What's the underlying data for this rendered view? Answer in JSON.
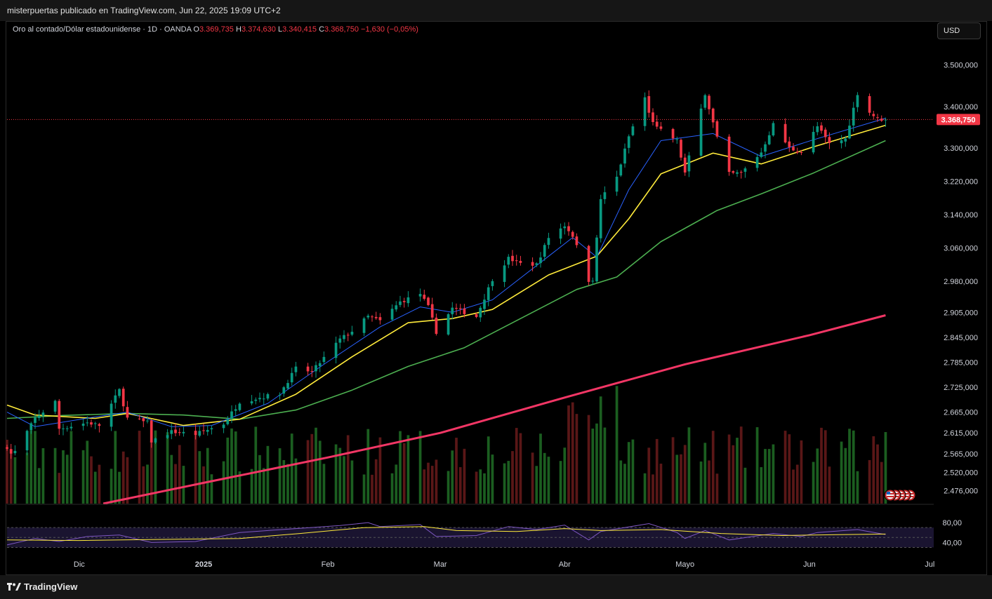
{
  "header": {
    "published_text": "misterpuertas publicado en TradingView.com, Jun 22, 2025 19:09 UTC+2"
  },
  "symbol_info": {
    "title": "Oro al contado/Dólar estadounidense · 1D · OANDA",
    "open_label": "O",
    "open_value": "3.369,735",
    "high_label": "H",
    "high_value": "3.374,630",
    "low_label": "L",
    "low_value": "3.340,415",
    "close_label": "C",
    "close_value": "3.368,750",
    "change": "−1,630 (−0,05%)"
  },
  "currency_button": "USD",
  "current_price_label": "3.368,750",
  "footer": {
    "logo_text": "TradingView"
  },
  "colors": {
    "up": "#089981",
    "down": "#f23645",
    "volume_up": "#1b5e20",
    "volume_down": "#5a1717",
    "ema_fast": "#2962ff",
    "ema_mid": "#ffeb3b",
    "ema_slow": "#4caf50",
    "ema_long": "#f23665",
    "rsi": "#7e57c2",
    "rsi_ma": "#ffeb3b"
  },
  "chart_data": {
    "type": "candlestick",
    "title": "Oro al contado/Dólar estadounidense · 1D · OANDA",
    "x_tick_labels": [
      "Dic",
      "2025",
      "Feb",
      "Mar",
      "Abr",
      "Mayo",
      "Jun",
      "Jul"
    ],
    "y_tick_labels": [
      "3.500,000",
      "3.400,000",
      "3.300,000",
      "3.220,000",
      "3.140,000",
      "3.060,000",
      "2.980,000",
      "2.905,000",
      "2.845,000",
      "2.785,000",
      "2.725,000",
      "2.665,000",
      "2.615,000",
      "2.565,000",
      "2.520,000",
      "2.476,000"
    ],
    "y_ticks": [
      3500,
      3400,
      3300,
      3220,
      3140,
      3060,
      2980,
      2905,
      2845,
      2785,
      2725,
      2665,
      2615,
      2565,
      2520,
      2476
    ],
    "ylim": [
      2445,
      3555
    ],
    "x_range": [
      "2024-11-13",
      "2025-07-02"
    ],
    "last_price": 3368.75,
    "rsi_tick_labels": [
      "80,00",
      "40,00"
    ],
    "rsi_ticks": [
      80,
      40
    ],
    "rsi_lim": [
      25,
      90
    ],
    "price_path": [
      [
        "2024-11-13",
        2582
      ],
      [
        "2024-11-14",
        2565
      ],
      [
        "2024-11-15",
        2570
      ],
      [
        "2024-11-20",
        2650
      ],
      [
        "2024-11-25",
        2690
      ],
      [
        "2024-11-26",
        2625
      ],
      [
        "2024-12-03",
        2640
      ],
      [
        "2024-12-06",
        2633
      ],
      [
        "2024-12-11",
        2718
      ],
      [
        "2024-12-13",
        2650
      ],
      [
        "2024-12-18",
        2640
      ],
      [
        "2024-12-19",
        2595
      ],
      [
        "2024-12-24",
        2618
      ],
      [
        "2024-12-30",
        2612
      ],
      [
        "2025-01-06",
        2637
      ],
      [
        "2025-01-10",
        2690
      ],
      [
        "2025-01-15",
        2700
      ],
      [
        "2025-01-20",
        2710
      ],
      [
        "2025-01-24",
        2770
      ],
      [
        "2025-01-28",
        2762
      ],
      [
        "2025-02-04",
        2840
      ],
      [
        "2025-02-07",
        2860
      ],
      [
        "2025-02-11",
        2895
      ],
      [
        "2025-02-14",
        2884
      ],
      [
        "2025-02-19",
        2930
      ],
      [
        "2025-02-24",
        2950
      ],
      [
        "2025-02-26",
        2918
      ],
      [
        "2025-02-28",
        2858
      ],
      [
        "2025-03-04",
        2915
      ],
      [
        "2025-03-10",
        2895
      ],
      [
        "2025-03-14",
        2985
      ],
      [
        "2025-03-18",
        3035
      ],
      [
        "2025-03-21",
        3022
      ],
      [
        "2025-03-25",
        3020
      ],
      [
        "2025-03-28",
        3085
      ],
      [
        "2025-04-01",
        3114
      ],
      [
        "2025-04-03",
        3090
      ],
      [
        "2025-04-07",
        2982
      ],
      [
        "2025-04-08",
        2985
      ],
      [
        "2025-04-10",
        3178
      ],
      [
        "2025-04-14",
        3230
      ],
      [
        "2025-04-17",
        3328
      ],
      [
        "2025-04-21",
        3422
      ],
      [
        "2025-04-22",
        3383
      ],
      [
        "2025-04-24",
        3348
      ],
      [
        "2025-04-29",
        3318
      ],
      [
        "2025-05-01",
        3240
      ],
      [
        "2025-05-06",
        3432
      ],
      [
        "2025-05-09",
        3325
      ],
      [
        "2025-05-12",
        3238
      ],
      [
        "2025-05-15",
        3240
      ],
      [
        "2025-05-20",
        3290
      ],
      [
        "2025-05-23",
        3357
      ],
      [
        "2025-05-27",
        3300
      ],
      [
        "2025-05-30",
        3290
      ],
      [
        "2025-06-03",
        3352
      ],
      [
        "2025-06-06",
        3310
      ],
      [
        "2025-06-10",
        3322
      ],
      [
        "2025-06-13",
        3432
      ],
      [
        "2025-06-16",
        3386
      ],
      [
        "2025-06-18",
        3370
      ],
      [
        "2025-06-20",
        3368.75
      ]
    ],
    "ema_fast_path": [
      [
        "2024-11-13",
        2665
      ],
      [
        "2024-11-20",
        2630
      ],
      [
        "2024-12-04",
        2652
      ],
      [
        "2024-12-13",
        2665
      ],
      [
        "2024-12-24",
        2630
      ],
      [
        "2025-01-03",
        2633
      ],
      [
        "2025-01-17",
        2686
      ],
      [
        "2025-01-31",
        2780
      ],
      [
        "2025-02-14",
        2870
      ],
      [
        "2025-02-24",
        2918
      ],
      [
        "2025-03-04",
        2905
      ],
      [
        "2025-03-14",
        2935
      ],
      [
        "2025-03-28",
        3040
      ],
      [
        "2025-04-03",
        3085
      ],
      [
        "2025-04-09",
        3038
      ],
      [
        "2025-04-17",
        3200
      ],
      [
        "2025-04-25",
        3318
      ],
      [
        "2025-05-08",
        3335
      ],
      [
        "2025-05-20",
        3280
      ],
      [
        "2025-06-02",
        3320
      ],
      [
        "2025-06-20",
        3372
      ]
    ],
    "ema_mid_path": [
      [
        "2024-11-13",
        2682
      ],
      [
        "2024-11-20",
        2658
      ],
      [
        "2024-12-05",
        2650
      ],
      [
        "2024-12-13",
        2662
      ],
      [
        "2024-12-27",
        2633
      ],
      [
        "2025-01-10",
        2648
      ],
      [
        "2025-01-24",
        2708
      ],
      [
        "2025-02-07",
        2798
      ],
      [
        "2025-02-21",
        2880
      ],
      [
        "2025-03-04",
        2890
      ],
      [
        "2025-03-14",
        2912
      ],
      [
        "2025-03-28",
        2995
      ],
      [
        "2025-04-09",
        3040
      ],
      [
        "2025-04-17",
        3130
      ],
      [
        "2025-04-25",
        3238
      ],
      [
        "2025-05-08",
        3288
      ],
      [
        "2025-05-20",
        3262
      ],
      [
        "2025-06-02",
        3303
      ],
      [
        "2025-06-20",
        3355
      ]
    ],
    "ema_slow_path": [
      [
        "2024-11-13",
        2650
      ],
      [
        "2024-11-27",
        2657
      ],
      [
        "2024-12-13",
        2662
      ],
      [
        "2024-12-27",
        2658
      ],
      [
        "2025-01-10",
        2648
      ],
      [
        "2025-01-24",
        2670
      ],
      [
        "2025-02-07",
        2718
      ],
      [
        "2025-02-21",
        2775
      ],
      [
        "2025-03-07",
        2820
      ],
      [
        "2025-03-21",
        2890
      ],
      [
        "2025-04-04",
        2960
      ],
      [
        "2025-04-14",
        2990
      ],
      [
        "2025-04-25",
        3075
      ],
      [
        "2025-05-09",
        3150
      ],
      [
        "2025-05-20",
        3190
      ],
      [
        "2025-06-02",
        3240
      ],
      [
        "2025-06-20",
        3318
      ]
    ],
    "ema_long_path": [
      [
        "2024-12-07",
        2445
      ],
      [
        "2025-01-01",
        2495
      ],
      [
        "2025-02-01",
        2556
      ],
      [
        "2025-03-01",
        2615
      ],
      [
        "2025-04-01",
        2700
      ],
      [
        "2025-05-01",
        2780
      ],
      [
        "2025-06-01",
        2850
      ],
      [
        "2025-06-20",
        2898
      ]
    ],
    "rsi_path": [
      [
        "2024-11-13",
        35
      ],
      [
        "2024-11-20",
        48
      ],
      [
        "2024-11-26",
        42
      ],
      [
        "2024-12-03",
        52
      ],
      [
        "2024-12-11",
        55
      ],
      [
        "2024-12-19",
        40
      ],
      [
        "2024-12-30",
        42
      ],
      [
        "2025-01-10",
        60
      ],
      [
        "2025-01-24",
        68
      ],
      [
        "2025-02-04",
        74
      ],
      [
        "2025-02-11",
        80
      ],
      [
        "2025-02-14",
        72
      ],
      [
        "2025-02-24",
        76
      ],
      [
        "2025-02-28",
        52
      ],
      [
        "2025-03-10",
        54
      ],
      [
        "2025-03-18",
        72
      ],
      [
        "2025-03-25",
        66
      ],
      [
        "2025-04-01",
        75
      ],
      [
        "2025-04-07",
        45
      ],
      [
        "2025-04-10",
        62
      ],
      [
        "2025-04-22",
        78
      ],
      [
        "2025-04-29",
        60
      ],
      [
        "2025-05-01",
        48
      ],
      [
        "2025-05-06",
        64
      ],
      [
        "2025-05-12",
        45
      ],
      [
        "2025-05-23",
        58
      ],
      [
        "2025-05-30",
        52
      ],
      [
        "2025-06-03",
        60
      ],
      [
        "2025-06-13",
        66
      ],
      [
        "2025-06-20",
        56
      ]
    ],
    "rsi_ma_path": [
      [
        "2024-11-13",
        45
      ],
      [
        "2024-12-01",
        44
      ],
      [
        "2024-12-20",
        46
      ],
      [
        "2025-01-10",
        48
      ],
      [
        "2025-01-25",
        58
      ],
      [
        "2025-02-10",
        70
      ],
      [
        "2025-02-25",
        72
      ],
      [
        "2025-03-05",
        64
      ],
      [
        "2025-03-20",
        62
      ],
      [
        "2025-04-01",
        68
      ],
      [
        "2025-04-10",
        64
      ],
      [
        "2025-04-25",
        66
      ],
      [
        "2025-05-10",
        58
      ],
      [
        "2025-05-25",
        54
      ],
      [
        "2025-06-10",
        56
      ],
      [
        "2025-06-20",
        57
      ]
    ]
  }
}
